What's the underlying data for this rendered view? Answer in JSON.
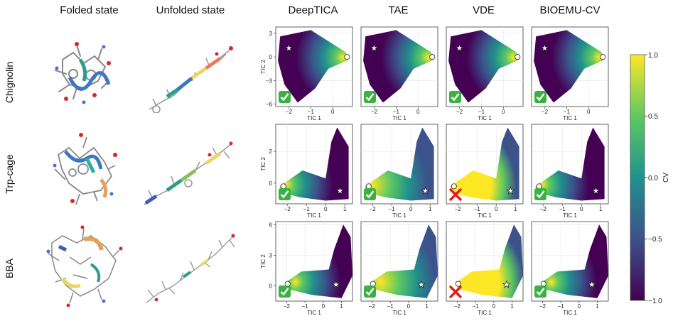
{
  "column_titles": {
    "folded": "Folded state",
    "unfolded": "Unfolded state",
    "methods": [
      "DeepTICA",
      "TAE",
      "VDE",
      "BIOEMU-CV"
    ]
  },
  "rows": [
    {
      "name": "Chignolin",
      "ylabel": "TIC 2",
      "xlabel": "TIC 1",
      "xticks": [
        "−2",
        "−1",
        "0"
      ],
      "yticks": [
        "3",
        "0",
        "−3",
        "−6"
      ],
      "results": [
        "check",
        "check",
        "check",
        "check"
      ]
    },
    {
      "name": "Trp-cage",
      "ylabel": "TIC 2",
      "xlabel": "TIC 1",
      "xticks": [
        "−2",
        "−1",
        "0",
        "1"
      ],
      "yticks": [
        "2",
        "0"
      ],
      "results": [
        "check",
        "check",
        "cross",
        "check"
      ]
    },
    {
      "name": "BBA",
      "ylabel": "TIC 2",
      "xlabel": "TIC 1",
      "xticks": [
        "−2",
        "−1",
        "0",
        "1"
      ],
      "yticks": [
        "6",
        "3",
        "0"
      ],
      "results": [
        "check",
        "check",
        "cross",
        "check"
      ]
    }
  ],
  "colorbar": {
    "label": "CV",
    "ticks": [
      "1.0",
      "0.5",
      "0.0",
      "−0.5",
      "−1.0"
    ],
    "colors": [
      "#440154",
      "#3b528b",
      "#21918c",
      "#5ec962",
      "#fde725"
    ]
  },
  "chart_data": [
    {
      "type": "scatter",
      "row": "Chignolin",
      "xlim": [
        -2.6,
        0.9
      ],
      "ylim": [
        -6.3,
        3.8
      ],
      "xlabel": "TIC 1",
      "ylabel": "TIC 2",
      "xticks": [
        -2,
        -1,
        0
      ],
      "yticks": [
        3,
        0,
        -3,
        -6
      ],
      "markers": {
        "star": [
          -2.0,
          1.1
        ],
        "circle": [
          0.65,
          0.0
        ]
      },
      "colorbar_range": [
        -1.0,
        1.0
      ]
    },
    {
      "type": "scatter",
      "row": "Trp-cage",
      "xlim": [
        -2.6,
        1.4
      ],
      "ylim": [
        -1.3,
        3.7
      ],
      "xlabel": "TIC 1",
      "ylabel": "TIC 2",
      "xticks": [
        -2,
        -1,
        0,
        1
      ],
      "yticks": [
        2,
        0
      ],
      "markers": {
        "star": [
          0.75,
          -0.5
        ],
        "circle": [
          -2.2,
          -0.2
        ]
      },
      "colorbar_range": [
        -1.0,
        1.0
      ]
    },
    {
      "type": "scatter",
      "row": "BBA",
      "xlim": [
        -2.6,
        1.6
      ],
      "ylim": [
        -1.5,
        6.3
      ],
      "xlabel": "TIC 1",
      "ylabel": "TIC 2",
      "xticks": [
        -2,
        -1,
        0,
        1
      ],
      "yticks": [
        6,
        3,
        0
      ],
      "markers": {
        "star": [
          0.7,
          0.1
        ],
        "circle": [
          -1.95,
          0.2
        ]
      },
      "colorbar_range": [
        -1.0,
        1.0
      ]
    }
  ]
}
